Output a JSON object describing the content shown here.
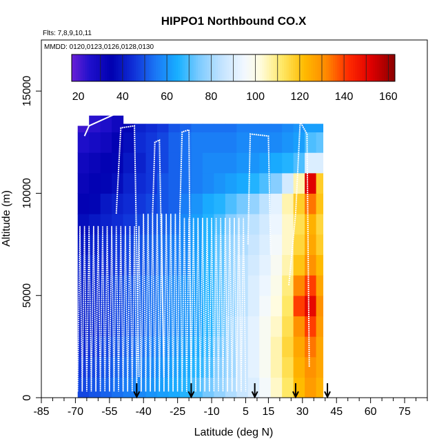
{
  "chart_data": {
    "type": "heatmap",
    "title": "HIPPO1 Northbound CO.X",
    "subtitle_flights": "Flts: 7,8,9,10,11",
    "subtitle_dates": "MMDD: 0120,0123,0126,0128,0130",
    "xlabel": "Latitude (deg N)",
    "ylabel": "Altitude (m)",
    "xlim": [
      -85,
      85
    ],
    "ylim": [
      0,
      17500
    ],
    "x_ticks": [
      -85,
      -70,
      -55,
      -40,
      -25,
      -10,
      5,
      15,
      30,
      45,
      60,
      75
    ],
    "x_tick_labels": [
      "-85",
      "-70",
      "-55",
      "-40",
      "-25",
      "-10",
      "5",
      "15",
      "30",
      "45",
      "60",
      "75"
    ],
    "x_minor_ticks": [
      -80,
      -75,
      -65,
      -60,
      -50,
      -45,
      -35,
      -30,
      -20,
      -15,
      -5,
      0,
      10,
      20,
      25,
      35,
      40,
      50,
      55,
      65,
      70,
      80,
      85
    ],
    "y_ticks": [
      0,
      5000,
      10000,
      15000
    ],
    "y_tick_labels": [
      "0",
      "5000",
      "10000",
      "15000"
    ],
    "colorbar": {
      "range": [
        17,
        163
      ],
      "ticks": [
        20,
        40,
        60,
        80,
        100,
        120,
        140,
        160
      ],
      "tick_labels": [
        "20",
        "40",
        "60",
        "80",
        "100",
        "120",
        "140",
        "160"
      ],
      "stops": [
        {
          "value": 17,
          "color": "#6a1fd6"
        },
        {
          "value": 25,
          "color": "#2010cc"
        },
        {
          "value": 35,
          "color": "#0000b0"
        },
        {
          "value": 45,
          "color": "#1030d8"
        },
        {
          "value": 55,
          "color": "#1a78f5"
        },
        {
          "value": 65,
          "color": "#19b0ff"
        },
        {
          "value": 75,
          "color": "#80ccff"
        },
        {
          "value": 85,
          "color": "#c4e4ff"
        },
        {
          "value": 95,
          "color": "#f2f8ff"
        },
        {
          "value": 102,
          "color": "#fffce0"
        },
        {
          "value": 112,
          "color": "#ffe866"
        },
        {
          "value": 122,
          "color": "#ffbb00"
        },
        {
          "value": 132,
          "color": "#ff8800"
        },
        {
          "value": 142,
          "color": "#ff2a00"
        },
        {
          "value": 152,
          "color": "#e00000"
        },
        {
          "value": 163,
          "color": "#8a0000"
        }
      ]
    },
    "lat_bins": [
      -69,
      -64,
      -59,
      -54,
      -49,
      -44,
      -39,
      -34,
      -29,
      -24,
      -19,
      -14,
      -9,
      -4,
      1,
      6,
      11,
      16,
      21,
      26,
      31,
      36,
      39
    ],
    "alt_bins": [
      0,
      1000,
      2000,
      3000,
      4000,
      5000,
      6000,
      7000,
      8000,
      9000,
      10000,
      11000,
      12000,
      13000,
      14000
    ],
    "column_tops": [
      13300,
      13800,
      13800,
      13800,
      13400,
      13400,
      13400,
      13400,
      13400,
      13400,
      13400,
      13400,
      13400,
      13400,
      13400,
      13400,
      13400,
      13400,
      13400,
      13400,
      13400,
      13400
    ],
    "values": [
      [
        48,
        50,
        52,
        54,
        56,
        58,
        60,
        62,
        64,
        66,
        70,
        74,
        78,
        82,
        86,
        90,
        96,
        104,
        112,
        122,
        128,
        124
      ],
      [
        46,
        48,
        50,
        52,
        54,
        56,
        58,
        60,
        62,
        64,
        66,
        70,
        76,
        80,
        86,
        92,
        98,
        106,
        114,
        124,
        130,
        126
      ],
      [
        44,
        46,
        48,
        50,
        52,
        54,
        56,
        58,
        60,
        62,
        64,
        68,
        74,
        80,
        86,
        92,
        98,
        106,
        116,
        126,
        134,
        126
      ],
      [
        42,
        44,
        46,
        48,
        50,
        52,
        54,
        56,
        58,
        60,
        62,
        66,
        72,
        80,
        86,
        92,
        98,
        104,
        114,
        130,
        140,
        128
      ],
      [
        42,
        44,
        46,
        48,
        50,
        52,
        54,
        56,
        58,
        60,
        62,
        66,
        72,
        78,
        84,
        90,
        96,
        102,
        112,
        140,
        150,
        130
      ],
      [
        42,
        44,
        46,
        48,
        50,
        52,
        54,
        56,
        58,
        60,
        62,
        66,
        72,
        78,
        84,
        90,
        94,
        100,
        110,
        132,
        140,
        126
      ],
      [
        42,
        44,
        44,
        46,
        48,
        50,
        52,
        54,
        56,
        58,
        62,
        66,
        72,
        78,
        84,
        88,
        92,
        98,
        106,
        120,
        130,
        122
      ],
      [
        40,
        42,
        44,
        46,
        48,
        50,
        52,
        54,
        56,
        58,
        62,
        66,
        72,
        78,
        82,
        86,
        90,
        96,
        104,
        116,
        126,
        118
      ],
      [
        38,
        40,
        42,
        44,
        46,
        48,
        50,
        52,
        54,
        58,
        62,
        66,
        70,
        76,
        80,
        84,
        88,
        94,
        104,
        114,
        124,
        116
      ],
      [
        34,
        36,
        40,
        42,
        44,
        46,
        48,
        50,
        52,
        56,
        60,
        64,
        66,
        70,
        74,
        78,
        84,
        92,
        106,
        118,
        134,
        120
      ],
      [
        32,
        34,
        36,
        38,
        42,
        44,
        46,
        50,
        52,
        54,
        56,
        58,
        60,
        62,
        64,
        66,
        70,
        76,
        88,
        106,
        152,
        118
      ],
      [
        30,
        32,
        34,
        36,
        40,
        42,
        46,
        48,
        52,
        54,
        56,
        58,
        58,
        58,
        60,
        60,
        62,
        64,
        66,
        70,
        90,
        90
      ],
      [
        26,
        28,
        30,
        34,
        38,
        44,
        46,
        48,
        52,
        54,
        56,
        56,
        56,
        56,
        58,
        58,
        58,
        58,
        60,
        62,
        70,
        72
      ],
      [
        22,
        24,
        26,
        30,
        36,
        42,
        44,
        46,
        50,
        52,
        54,
        54,
        54,
        54,
        56,
        56,
        56,
        56,
        58,
        60,
        62,
        62
      ]
    ],
    "arrow_latitudes": [
      -43,
      -19,
      9,
      27,
      41
    ]
  }
}
